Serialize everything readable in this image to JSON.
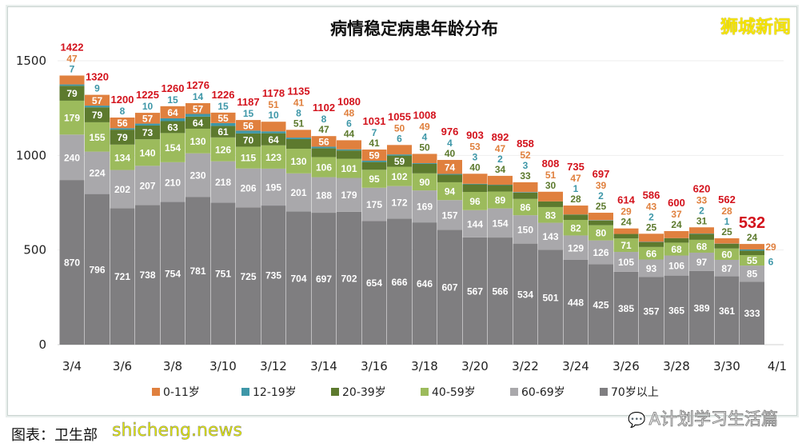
{
  "watermarks": {
    "top_right": "狮城新闻",
    "bottom_right": "A计划学习生活篇",
    "bottom_left": "shicheng.news"
  },
  "caption": "图表：卫生部",
  "chart_data": {
    "type": "bar",
    "stacked": true,
    "title": "病情稳定病患年龄分布",
    "xlabel": "",
    "ylabel": "",
    "ylim": [
      0,
      1500
    ],
    "yticks": [
      0,
      500,
      1000,
      1500
    ],
    "categories": [
      "3/4",
      "3/5",
      "3/6",
      "3/7",
      "3/8",
      "3/9",
      "3/10",
      "3/11",
      "3/12",
      "3/13",
      "3/14",
      "3/15",
      "3/16",
      "3/17",
      "3/18",
      "3/19",
      "3/20",
      "3/21",
      "3/22",
      "3/23",
      "3/24",
      "3/25",
      "3/26",
      "3/27",
      "3/28",
      "3/29",
      "3/30",
      "3/31"
    ],
    "xtick_labels": [
      "3/4",
      "3/6",
      "3/8",
      "3/10",
      "3/12",
      "3/14",
      "3/16",
      "3/18",
      "3/20",
      "3/22",
      "3/24",
      "3/26",
      "3/28",
      "3/30",
      "4/1"
    ],
    "legend_position": "bottom",
    "series": [
      {
        "name": "70岁以上",
        "color": "#7f7e80",
        "values": [
          870,
          796,
          721,
          738,
          754,
          781,
          751,
          725,
          735,
          704,
          697,
          702,
          654,
          666,
          646,
          607,
          567,
          566,
          534,
          501,
          448,
          425,
          385,
          357,
          365,
          389,
          361,
          333
        ]
      },
      {
        "name": "60-69岁",
        "color": "#a9a8ab",
        "values": [
          240,
          224,
          202,
          207,
          210,
          230,
          218,
          206,
          195,
          201,
          188,
          179,
          175,
          172,
          169,
          157,
          144,
          154,
          150,
          143,
          129,
          126,
          105,
          93,
          106,
          97,
          87,
          85
        ]
      },
      {
        "name": "40-59岁",
        "color": "#9cbb5c",
        "values": [
          179,
          155,
          134,
          140,
          154,
          130,
          126,
          115,
          123,
          130,
          106,
          101,
          95,
          102,
          90,
          94,
          96,
          89,
          86,
          83,
          82,
          80,
          71,
          66,
          68,
          68,
          60,
          55
        ]
      },
      {
        "name": "20-39岁",
        "color": "#5d7a2e",
        "values": [
          79,
          79,
          79,
          73,
          63,
          64,
          61,
          70,
          64,
          51,
          47,
          44,
          41,
          59,
          50,
          40,
          40,
          34,
          33,
          30,
          28,
          25,
          24,
          25,
          24,
          31,
          25,
          24
        ]
      },
      {
        "name": "12-19岁",
        "color": "#3e97a8",
        "values": [
          7,
          9,
          8,
          10,
          15,
          14,
          15,
          15,
          10,
          8,
          8,
          6,
          7,
          6,
          4,
          4,
          3,
          2,
          3,
          0,
          1,
          2,
          0,
          2,
          0,
          2,
          1,
          6
        ]
      },
      {
        "name": "0-11岁",
        "color": "#e0803e",
        "values": [
          47,
          57,
          56,
          57,
          64,
          57,
          55,
          56,
          51,
          41,
          56,
          48,
          59,
          50,
          49,
          74,
          53,
          47,
          52,
          51,
          47,
          39,
          29,
          43,
          37,
          33,
          28,
          29
        ]
      }
    ],
    "totals": [
      1422,
      1320,
      1200,
      1225,
      1260,
      1276,
      1226,
      1187,
      1178,
      1135,
      1102,
      1080,
      1031,
      1055,
      1008,
      976,
      903,
      892,
      858,
      808,
      735,
      697,
      614,
      586,
      600,
      620,
      562,
      532
    ],
    "legend_order": [
      "0-11岁",
      "12-19岁",
      "20-39岁",
      "40-59岁",
      "60-69岁",
      "70岁以上"
    ]
  }
}
